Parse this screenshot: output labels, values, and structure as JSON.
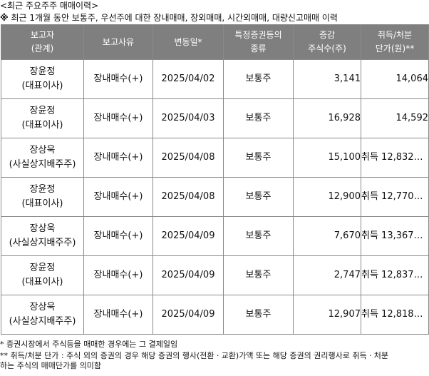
{
  "title": "<최근 주요주주 매매이력>",
  "note_mark": "※",
  "note_text": " 최근 1개월 동안 보통주, 우선주에 대한 장내매매, 장외매매, 시간외매매, 대량신고매매 이력",
  "headers": [
    {
      "line1": "보고자",
      "line2": "(관계)"
    },
    {
      "line1": "보고사유",
      "line2": ""
    },
    {
      "line1": "변동일*",
      "line2": ""
    },
    {
      "line1": "특정증권등의",
      "line2": "종류"
    },
    {
      "line1": "증감",
      "line2": "주식수(주)"
    },
    {
      "line1": "취득/처분",
      "line2": "단가(원)**"
    }
  ],
  "rows": [
    {
      "name": "장윤정",
      "relation": "(대표이사)",
      "reason": "장내매수(+)",
      "date": "2025/04/02",
      "type": "보통주",
      "change": "3,141",
      "price": "14,064"
    },
    {
      "name": "장윤정",
      "relation": "(대표이사)",
      "reason": "장내매수(+)",
      "date": "2025/04/03",
      "type": "보통주",
      "change": "16,928",
      "price": "14,592"
    },
    {
      "name": "장상욱",
      "relation": "(사실상지배주주)",
      "reason": "장내매수(+)",
      "date": "2025/04/08",
      "type": "보통주",
      "change": "15,100",
      "price": "취득 12,832…"
    },
    {
      "name": "장윤정",
      "relation": "(대표이사)",
      "reason": "장내매수(+)",
      "date": "2025/04/08",
      "type": "보통주",
      "change": "12,900",
      "price": "취득 12,770…"
    },
    {
      "name": "장상욱",
      "relation": "(사실상지배주주)",
      "reason": "장내매수(+)",
      "date": "2025/04/09",
      "type": "보통주",
      "change": "7,670",
      "price": "취득 13,367…"
    },
    {
      "name": "장윤정",
      "relation": "(대표이사)",
      "reason": "장내매수(+)",
      "date": "2025/04/09",
      "type": "보통주",
      "change": "2,747",
      "price": "취득 12,837…"
    },
    {
      "name": "장상욱",
      "relation": "(사실상지배주주)",
      "reason": "장내매수(+)",
      "date": "2025/04/09",
      "type": "보통주",
      "change": "12,907",
      "price": "취득 12,818…"
    }
  ],
  "footnotes": [
    "* 증권시장에서 주식등을 매매한 경우에는 그 결제일임",
    "** 취득/처분 단가 : 주식 외의 증권의 경우 해당 증권의 행사(전환ㆍ교환)가액 또는 해당 증권의 권리행사로 취득ㆍ처분",
    "하는 주식의 매매단가를 의미함"
  ]
}
